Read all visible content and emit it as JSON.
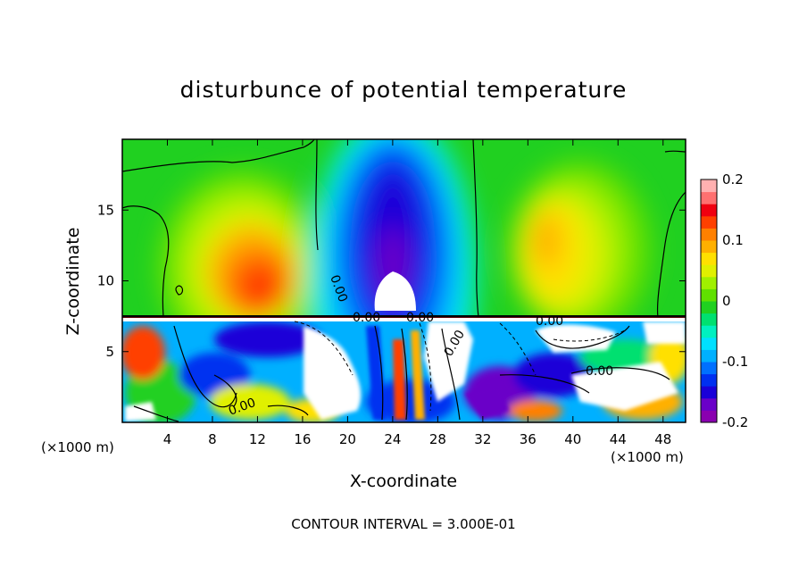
{
  "chart_data": {
    "type": "heatmap",
    "title": "disturbunce of potential temperature",
    "xlabel": "X-coordinate",
    "ylabel": "Z-coordinate",
    "x_unit_left": "(×1000 m)",
    "x_unit_right": "(×1000 m)",
    "xlim": [
      0,
      50
    ],
    "ylim": [
      0,
      20
    ],
    "x_ticks": [
      "4",
      "8",
      "12",
      "16",
      "20",
      "24",
      "28",
      "32",
      "36",
      "40",
      "44",
      "48"
    ],
    "y_ticks": [
      "5",
      "10",
      "15"
    ],
    "colorbar": {
      "range": [
        -0.2,
        0.2
      ],
      "ticks": [
        "0.2",
        "0.1",
        "0",
        "-0.1",
        "-0.2"
      ],
      "colors": [
        "#8a00b0",
        "#6a00c8",
        "#1a00d8",
        "#0030f0",
        "#0070ff",
        "#00b0ff",
        "#00e0ff",
        "#00f0c0",
        "#00e070",
        "#20d020",
        "#60e000",
        "#a0f000",
        "#e0f000",
        "#ffe000",
        "#ffb000",
        "#ff8000",
        "#ff4000",
        "#f00010",
        "#ff7070",
        "#ffb0b0"
      ]
    },
    "contour_labels": [
      "0.00",
      "0.00",
      "0.00",
      "0.00",
      "0.00",
      "0.00",
      "0.00"
    ],
    "contour_interval": "CONTOUR INTERVAL = 3.000E-01"
  }
}
